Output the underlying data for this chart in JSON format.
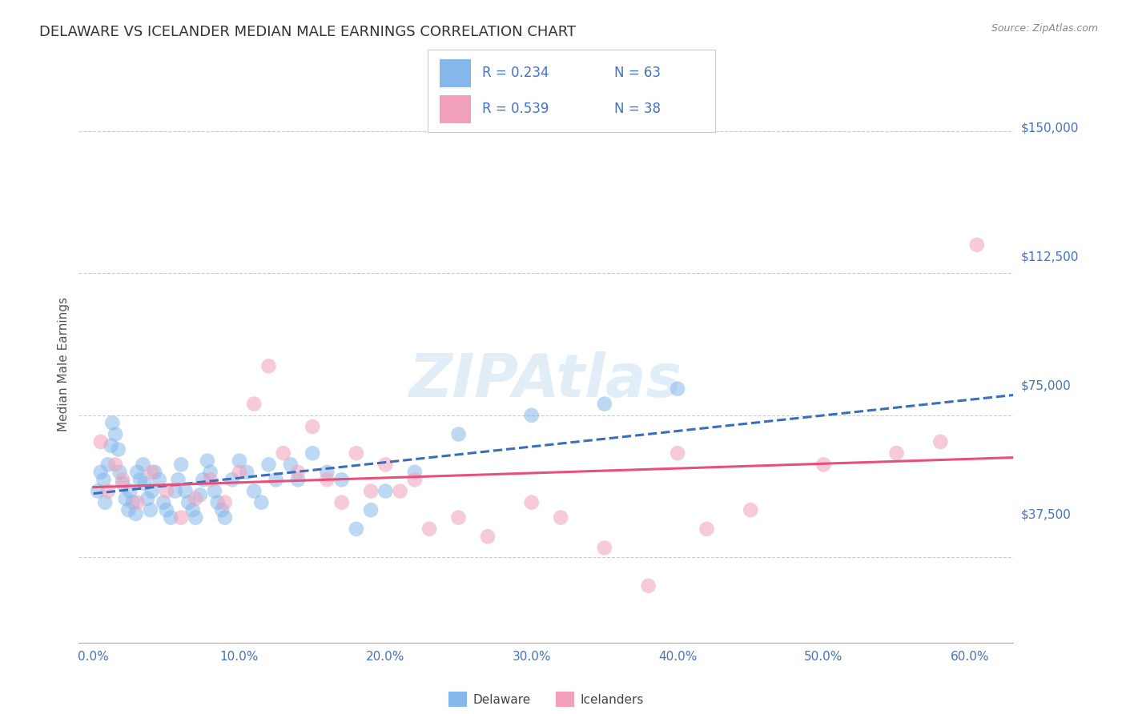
{
  "title": "DELAWARE VS ICELANDER MEDIAN MALE EARNINGS CORRELATION CHART",
  "source": "Source: ZipAtlas.com",
  "xlabel_ticks": [
    "0.0%",
    "10.0%",
    "20.0%",
    "30.0%",
    "40.0%",
    "50.0%",
    "60.0%"
  ],
  "xlabel_vals": [
    0.0,
    10.0,
    20.0,
    30.0,
    40.0,
    50.0,
    60.0
  ],
  "ylabel": "Median Male Earnings",
  "ylabel_ticks": [
    0,
    37500,
    75000,
    112500,
    150000
  ],
  "ylabel_labels": [
    "",
    "$37,500",
    "$75,000",
    "$112,500",
    "$150,000"
  ],
  "ymin": 15000,
  "ymax": 162000,
  "xmin": -1.0,
  "xmax": 63.0,
  "watermark": "ZIPAtlas",
  "legend_r1": "R = 0.234",
  "legend_n1": "N = 63",
  "legend_r2": "R = 0.539",
  "legend_n2": "N = 38",
  "color_blue": "#85B8EA",
  "color_pink": "#F2A0BA",
  "color_blue_line": "#3A6DBF",
  "color_pink_line": "#E8507A",
  "color_axis_labels": "#4472C4",
  "color_title": "#333333",
  "background_color": "#FFFFFF",
  "grid_color": "#CCCCCC",
  "delaware_x": [
    0.3,
    0.5,
    0.7,
    0.8,
    1.0,
    1.2,
    1.3,
    1.5,
    1.7,
    1.8,
    2.0,
    2.2,
    2.4,
    2.5,
    2.7,
    2.9,
    3.0,
    3.2,
    3.4,
    3.5,
    3.7,
    3.9,
    4.0,
    4.2,
    4.5,
    4.8,
    5.0,
    5.3,
    5.6,
    5.8,
    6.0,
    6.3,
    6.5,
    6.8,
    7.0,
    7.3,
    7.5,
    7.8,
    8.0,
    8.3,
    8.5,
    8.8,
    9.0,
    9.5,
    10.0,
    10.5,
    11.0,
    11.5,
    12.0,
    12.5,
    13.5,
    14.0,
    15.0,
    16.0,
    17.0,
    18.0,
    19.0,
    20.0,
    22.0,
    25.0,
    30.0,
    35.0,
    40.0
  ],
  "delaware_y": [
    55000,
    60000,
    58000,
    52000,
    62000,
    67000,
    73000,
    70000,
    66000,
    60000,
    57000,
    53000,
    50000,
    55000,
    52000,
    49000,
    60000,
    58000,
    62000,
    57000,
    53000,
    50000,
    55000,
    60000,
    58000,
    52000,
    50000,
    48000,
    55000,
    58000,
    62000,
    55000,
    52000,
    50000,
    48000,
    54000,
    58000,
    63000,
    60000,
    55000,
    52000,
    50000,
    48000,
    58000,
    63000,
    60000,
    55000,
    52000,
    62000,
    58000,
    62000,
    58000,
    65000,
    60000,
    58000,
    45000,
    50000,
    55000,
    60000,
    70000,
    75000,
    78000,
    82000
  ],
  "icelander_x": [
    0.5,
    1.0,
    1.5,
    2.0,
    3.0,
    4.0,
    5.0,
    6.0,
    7.0,
    8.0,
    9.0,
    10.0,
    11.0,
    12.0,
    13.0,
    14.0,
    15.0,
    16.0,
    17.0,
    18.0,
    19.0,
    20.0,
    21.0,
    22.0,
    23.0,
    25.0,
    27.0,
    30.0,
    32.0,
    35.0,
    38.0,
    40.0,
    42.0,
    45.0,
    50.0,
    55.0,
    58.0,
    60.5
  ],
  "icelander_y": [
    68000,
    55000,
    62000,
    58000,
    52000,
    60000,
    55000,
    48000,
    53000,
    58000,
    52000,
    60000,
    78000,
    88000,
    65000,
    60000,
    72000,
    58000,
    52000,
    65000,
    55000,
    62000,
    55000,
    58000,
    45000,
    48000,
    43000,
    52000,
    48000,
    40000,
    30000,
    65000,
    45000,
    50000,
    62000,
    65000,
    68000,
    120000
  ]
}
